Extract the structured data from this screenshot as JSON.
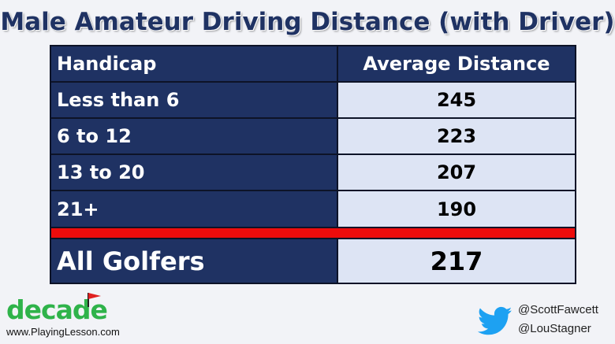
{
  "title": "Male Amateur Driving Distance (with Driver)",
  "table": {
    "header": {
      "col1": "Handicap",
      "col2": "Average Distance"
    },
    "rows": [
      {
        "handicap": "Less than 6",
        "distance": "245"
      },
      {
        "handicap": "6 to 12",
        "distance": "223"
      },
      {
        "handicap": "13 to 20",
        "distance": "207"
      },
      {
        "handicap": "21+",
        "distance": "190"
      }
    ],
    "total": {
      "label": "All Golfers",
      "distance": "217"
    }
  },
  "logo": {
    "word": "decade",
    "url": "www.PlayingLesson.com"
  },
  "social": {
    "handle1": "@ScottFawcett",
    "handle2": "@LouStagner"
  },
  "colors": {
    "navy": "#1f3263",
    "light_cell": "#dde4f4",
    "red_bar": "#ee0c0c",
    "logo_green": "#2fb34a",
    "twitter_blue": "#1da1f2"
  },
  "icons": [
    "golf-flag-icon",
    "twitter-bird-icon"
  ]
}
